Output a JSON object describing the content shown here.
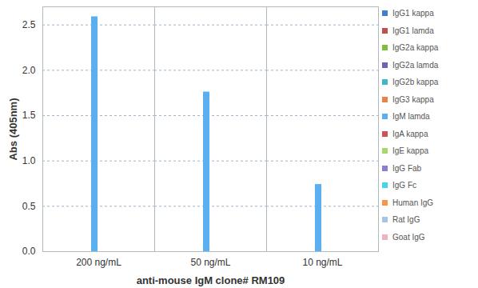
{
  "chart_data": {
    "type": "bar",
    "xlabel": "anti-mouse IgM clone# RM109",
    "ylabel": "Abs (405nm)",
    "categories": [
      "200 ng/mL",
      "50 ng/mL",
      "10 ng/mL"
    ],
    "series": [
      {
        "name": "IgG1 kappa",
        "color": "#3f7fd0",
        "values": [
          0,
          0,
          0
        ]
      },
      {
        "name": "IgG1 lamda",
        "color": "#c0504d",
        "values": [
          0,
          0,
          0
        ]
      },
      {
        "name": "IgG2a kappa",
        "color": "#7fbf3f",
        "values": [
          0,
          0,
          0
        ]
      },
      {
        "name": "IgG2a lamda",
        "color": "#7064b2",
        "values": [
          0,
          0,
          0
        ]
      },
      {
        "name": "IgG2b kappa",
        "color": "#3fb8c6",
        "values": [
          0,
          0,
          0
        ]
      },
      {
        "name": "IgG3 kappa",
        "color": "#e8844a",
        "values": [
          0,
          0,
          0
        ]
      },
      {
        "name": "IgM lamda",
        "color": "#5aaff0",
        "values": [
          2.59,
          1.76,
          0.74
        ]
      },
      {
        "name": "IgA kappa",
        "color": "#d0505a",
        "values": [
          0,
          0,
          0
        ]
      },
      {
        "name": "IgE kappa",
        "color": "#a6d86a",
        "values": [
          0,
          0,
          0
        ]
      },
      {
        "name": "IgG Fab",
        "color": "#8a7fd0",
        "values": [
          0,
          0,
          0
        ]
      },
      {
        "name": "IgG Fc",
        "color": "#45d6e8",
        "values": [
          0,
          0,
          0
        ]
      },
      {
        "name": "Human IgG",
        "color": "#f7964a",
        "values": [
          0,
          0,
          0
        ]
      },
      {
        "name": "Rat IgG",
        "color": "#a8c4e4",
        "values": [
          0,
          0,
          0
        ]
      },
      {
        "name": "Goat IgG",
        "color": "#eab4c0",
        "values": [
          0,
          0,
          0
        ]
      }
    ],
    "ylim": [
      0,
      2.7
    ],
    "yticks": [
      0,
      0.5,
      1,
      1.5,
      2,
      2.5
    ],
    "grid": true,
    "legend": "right"
  }
}
